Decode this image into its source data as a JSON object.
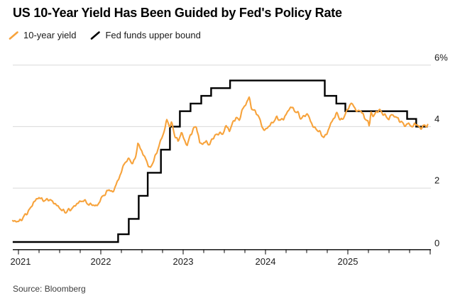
{
  "header": {
    "title": "US 10-Year Yield Has Been Guided by Fed's Policy Rate"
  },
  "legend": {
    "items": [
      {
        "label": "10-year yield",
        "color": "#F7A33C"
      },
      {
        "label": "Fed funds upper bound",
        "color": "#000000"
      }
    ]
  },
  "footer": {
    "source": "Source: Bloomberg"
  },
  "colors": {
    "yield_line": "#F7A33C",
    "fed_line": "#000000",
    "gridline": "#d9d9d9",
    "axis": "#000000",
    "background": "#ffffff"
  },
  "chart_data": {
    "type": "line",
    "title": "US 10-Year Yield Has Been Guided by Fed's Policy Rate",
    "grid": "horizontal",
    "legend_position": "top-left",
    "x_axis": {
      "unit": "decimal_year",
      "range": [
        2020.93,
        2026.0
      ],
      "minor_tick_interval_years": 0.25,
      "ticks": [
        {
          "value": 2021,
          "label": "2021"
        },
        {
          "value": 2022,
          "label": "2022"
        },
        {
          "value": 2023,
          "label": "2023"
        },
        {
          "value": 2024,
          "label": "2024"
        },
        {
          "value": 2025,
          "label": "2025"
        }
      ]
    },
    "y_axis": {
      "unit": "percent",
      "range": [
        0,
        6
      ],
      "ticks": [
        {
          "value": 6,
          "label": "6%"
        },
        {
          "value": 4,
          "label": "4"
        },
        {
          "value": 2,
          "label": "2"
        },
        {
          "value": 0,
          "label": "0"
        }
      ]
    },
    "series": [
      {
        "name": "Fed funds upper bound",
        "type": "step",
        "color": "#000000",
        "points": [
          [
            2020.93,
            0.25
          ],
          [
            2022.21,
            0.5
          ],
          [
            2022.34,
            1.0
          ],
          [
            2022.46,
            1.75
          ],
          [
            2022.57,
            2.5
          ],
          [
            2022.73,
            3.25
          ],
          [
            2022.84,
            4.0
          ],
          [
            2022.96,
            4.5
          ],
          [
            2023.09,
            4.75
          ],
          [
            2023.22,
            5.0
          ],
          [
            2023.34,
            5.25
          ],
          [
            2023.57,
            5.5
          ],
          [
            2024.72,
            5.0
          ],
          [
            2024.86,
            4.75
          ],
          [
            2024.97,
            4.5
          ],
          [
            2025.72,
            4.25
          ],
          [
            2025.83,
            4.0
          ],
          [
            2025.97,
            4.0
          ]
        ]
      },
      {
        "name": "10-year yield",
        "type": "line",
        "color": "#F7A33C",
        "points": [
          [
            2020.93,
            0.93
          ],
          [
            2021.0,
            0.92
          ],
          [
            2021.03,
            0.96
          ],
          [
            2021.06,
            1.06
          ],
          [
            2021.1,
            1.18
          ],
          [
            2021.14,
            1.32
          ],
          [
            2021.18,
            1.52
          ],
          [
            2021.22,
            1.64
          ],
          [
            2021.25,
            1.7
          ],
          [
            2021.29,
            1.62
          ],
          [
            2021.33,
            1.6
          ],
          [
            2021.37,
            1.64
          ],
          [
            2021.41,
            1.57
          ],
          [
            2021.45,
            1.48
          ],
          [
            2021.49,
            1.38
          ],
          [
            2021.53,
            1.28
          ],
          [
            2021.58,
            1.22
          ],
          [
            2021.61,
            1.29
          ],
          [
            2021.65,
            1.33
          ],
          [
            2021.7,
            1.47
          ],
          [
            2021.74,
            1.55
          ],
          [
            2021.79,
            1.6
          ],
          [
            2021.83,
            1.54
          ],
          [
            2021.86,
            1.44
          ],
          [
            2021.89,
            1.49
          ],
          [
            2021.93,
            1.41
          ],
          [
            2021.97,
            1.48
          ],
          [
            2022.02,
            1.74
          ],
          [
            2022.06,
            1.82
          ],
          [
            2022.1,
            1.98
          ],
          [
            2022.14,
            1.84
          ],
          [
            2022.19,
            2.14
          ],
          [
            2022.23,
            2.38
          ],
          [
            2022.27,
            2.7
          ],
          [
            2022.31,
            2.9
          ],
          [
            2022.35,
            2.94
          ],
          [
            2022.39,
            2.78
          ],
          [
            2022.43,
            3.1
          ],
          [
            2022.45,
            3.46
          ],
          [
            2022.49,
            3.24
          ],
          [
            2022.53,
            3.02
          ],
          [
            2022.57,
            2.8
          ],
          [
            2022.6,
            2.62
          ],
          [
            2022.64,
            2.9
          ],
          [
            2022.68,
            3.15
          ],
          [
            2022.72,
            3.5
          ],
          [
            2022.76,
            3.75
          ],
          [
            2022.8,
            4.22
          ],
          [
            2022.83,
            4.02
          ],
          [
            2022.86,
            4.12
          ],
          [
            2022.9,
            3.7
          ],
          [
            2022.94,
            3.52
          ],
          [
            2022.98,
            3.82
          ],
          [
            2023.02,
            3.52
          ],
          [
            2023.05,
            3.4
          ],
          [
            2023.09,
            3.74
          ],
          [
            2023.13,
            3.94
          ],
          [
            2023.16,
            4.02
          ],
          [
            2023.2,
            3.48
          ],
          [
            2023.24,
            3.44
          ],
          [
            2023.28,
            3.52
          ],
          [
            2023.32,
            3.4
          ],
          [
            2023.36,
            3.64
          ],
          [
            2023.4,
            3.72
          ],
          [
            2023.44,
            3.8
          ],
          [
            2023.48,
            3.74
          ],
          [
            2023.52,
            4.04
          ],
          [
            2023.56,
            3.86
          ],
          [
            2023.6,
            4.1
          ],
          [
            2023.64,
            4.3
          ],
          [
            2023.68,
            4.2
          ],
          [
            2023.72,
            4.56
          ],
          [
            2023.76,
            4.72
          ],
          [
            2023.8,
            4.96
          ],
          [
            2023.83,
            4.6
          ],
          [
            2023.86,
            4.52
          ],
          [
            2023.9,
            4.42
          ],
          [
            2023.94,
            4.16
          ],
          [
            2023.98,
            3.86
          ],
          [
            2024.02,
            3.96
          ],
          [
            2024.06,
            4.06
          ],
          [
            2024.1,
            4.18
          ],
          [
            2024.14,
            4.3
          ],
          [
            2024.18,
            4.2
          ],
          [
            2024.22,
            4.26
          ],
          [
            2024.26,
            4.44
          ],
          [
            2024.31,
            4.66
          ],
          [
            2024.35,
            4.52
          ],
          [
            2024.39,
            4.46
          ],
          [
            2024.43,
            4.26
          ],
          [
            2024.47,
            4.34
          ],
          [
            2024.51,
            4.42
          ],
          [
            2024.55,
            4.16
          ],
          [
            2024.59,
            3.96
          ],
          [
            2024.63,
            3.9
          ],
          [
            2024.67,
            3.78
          ],
          [
            2024.71,
            3.64
          ],
          [
            2024.75,
            3.8
          ],
          [
            2024.79,
            4.08
          ],
          [
            2024.83,
            4.28
          ],
          [
            2024.87,
            4.44
          ],
          [
            2024.9,
            4.26
          ],
          [
            2024.93,
            4.2
          ],
          [
            2024.97,
            4.42
          ],
          [
            2025.0,
            4.56
          ],
          [
            2025.04,
            4.78
          ],
          [
            2025.08,
            4.62
          ],
          [
            2025.12,
            4.48
          ],
          [
            2025.16,
            4.54
          ],
          [
            2025.2,
            4.28
          ],
          [
            2025.24,
            4.2
          ],
          [
            2025.26,
            3.99
          ],
          [
            2025.28,
            4.48
          ],
          [
            2025.31,
            4.32
          ],
          [
            2025.34,
            4.46
          ],
          [
            2025.38,
            4.54
          ],
          [
            2025.42,
            4.44
          ],
          [
            2025.46,
            4.34
          ],
          [
            2025.5,
            4.24
          ],
          [
            2025.53,
            4.4
          ],
          [
            2025.57,
            4.33
          ],
          [
            2025.61,
            4.26
          ],
          [
            2025.64,
            4.16
          ],
          [
            2025.68,
            4.08
          ],
          [
            2025.71,
            4.02
          ],
          [
            2025.74,
            4.13
          ],
          [
            2025.78,
            3.96
          ],
          [
            2025.81,
            4.1
          ],
          [
            2025.84,
            4.06
          ],
          [
            2025.88,
            3.94
          ],
          [
            2025.91,
            4.01
          ],
          [
            2025.97,
            4.05
          ]
        ]
      }
    ]
  }
}
